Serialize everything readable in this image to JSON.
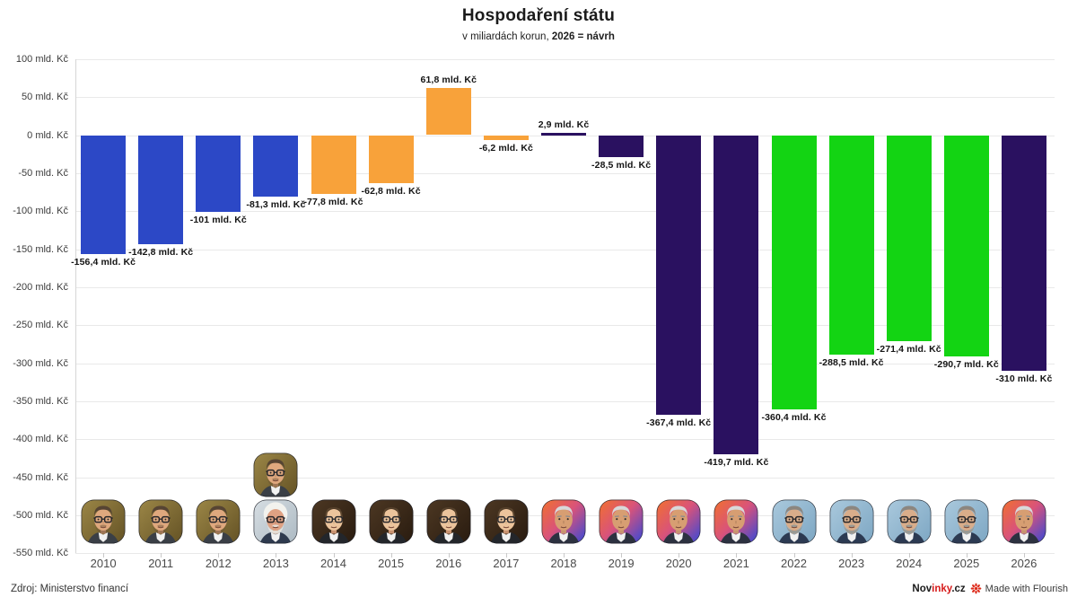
{
  "header": {
    "title": "Hospodaření státu",
    "subtitle_prefix": "v miliardách korun, ",
    "subtitle_bold": "2026 = návrh"
  },
  "chart_data": {
    "type": "bar",
    "title": "Hospodaření státu",
    "subtitle": "v miliardách korun, 2026 = návrh",
    "unit": "mld. Kč",
    "ylim": [
      -550,
      100
    ],
    "y_tick_step": 50,
    "grid": true,
    "legend": "none",
    "y_ticks": [
      {
        "v": 100,
        "label": "100 mld. Kč"
      },
      {
        "v": 50,
        "label": "50 mld. Kč"
      },
      {
        "v": 0,
        "label": "0 mld. Kč"
      },
      {
        "v": -50,
        "label": "-50 mld. Kč"
      },
      {
        "v": -100,
        "label": "-100 mld. Kč"
      },
      {
        "v": -150,
        "label": "-150 mld. Kč"
      },
      {
        "v": -200,
        "label": "-200 mld. Kč"
      },
      {
        "v": -250,
        "label": "-250 mld. Kč"
      },
      {
        "v": -300,
        "label": "-300 mld. Kč"
      },
      {
        "v": -350,
        "label": "-350 mld. Kč"
      },
      {
        "v": -400,
        "label": "-400 mld. Kč"
      },
      {
        "v": -450,
        "label": "-450 mld. Kč"
      },
      {
        "v": -500,
        "label": "-500 mld. Kč"
      },
      {
        "v": -550,
        "label": "-550 mld. Kč"
      }
    ],
    "palette": {
      "blue": "#2c48c6",
      "orange": "#f8a23a",
      "purple": "#2a1160",
      "green": "#13d413"
    },
    "points": [
      {
        "year": "2010",
        "value": -156.4,
        "label": "-156,4 mld. Kč",
        "color": "blue",
        "avatars": [
          "necas"
        ]
      },
      {
        "year": "2011",
        "value": -142.8,
        "label": "-142,8 mld. Kč",
        "color": "blue",
        "avatars": [
          "necas"
        ]
      },
      {
        "year": "2012",
        "value": -101,
        "label": "-101 mld. Kč",
        "color": "blue",
        "avatars": [
          "necas"
        ]
      },
      {
        "year": "2013",
        "value": -81.3,
        "label": "-81,3 mld. Kč",
        "color": "blue",
        "avatars": [
          "rusnok",
          "necas"
        ]
      },
      {
        "year": "2014",
        "value": -77.8,
        "label": "-77,8 mld. Kč",
        "color": "orange",
        "avatars": [
          "sobotka"
        ]
      },
      {
        "year": "2015",
        "value": -62.8,
        "label": "-62,8 mld. Kč",
        "color": "orange",
        "avatars": [
          "sobotka"
        ]
      },
      {
        "year": "2016",
        "value": 61.8,
        "label": "61,8 mld. Kč",
        "color": "orange",
        "avatars": [
          "sobotka"
        ]
      },
      {
        "year": "2017",
        "value": -6.2,
        "label": "-6,2 mld. Kč",
        "color": "orange",
        "avatars": [
          "sobotka"
        ]
      },
      {
        "year": "2018",
        "value": 2.9,
        "label": "2,9 mld. Kč",
        "color": "purple",
        "avatars": [
          "babis"
        ]
      },
      {
        "year": "2019",
        "value": -28.5,
        "label": "-28,5 mld. Kč",
        "color": "purple",
        "avatars": [
          "babis"
        ]
      },
      {
        "year": "2020",
        "value": -367.4,
        "label": "-367,4 mld. Kč",
        "color": "purple",
        "avatars": [
          "babis"
        ]
      },
      {
        "year": "2021",
        "value": -419.7,
        "label": "-419,7 mld. Kč",
        "color": "purple",
        "avatars": [
          "babis"
        ]
      },
      {
        "year": "2022",
        "value": -360.4,
        "label": "-360,4 mld. Kč",
        "color": "green",
        "avatars": [
          "fiala"
        ]
      },
      {
        "year": "2023",
        "value": -288.5,
        "label": "-288,5 mld. Kč",
        "color": "green",
        "avatars": [
          "fiala"
        ]
      },
      {
        "year": "2024",
        "value": -271.4,
        "label": "-271,4 mld. Kč",
        "color": "green",
        "avatars": [
          "fiala"
        ]
      },
      {
        "year": "2025",
        "value": -290.7,
        "label": "-290,7 mld. Kč",
        "color": "green",
        "avatars": [
          "fiala"
        ]
      },
      {
        "year": "2026",
        "value": -310,
        "label": "-310 mld. Kč",
        "color": "purple",
        "avatars": [
          "babis"
        ]
      }
    ]
  },
  "avatars": {
    "necas": {
      "bg": [
        "#9c8747",
        "#665426"
      ],
      "skin": "#dfa87e",
      "hair": "#564433",
      "glasses": true,
      "beard": "#6b5138",
      "beard_opacity": 0.45,
      "suit": "#3a3f46"
    },
    "rusnok": {
      "bg": [
        "#d7dee3",
        "#aebbc4"
      ],
      "skin": "#dfa183",
      "hair": "#f2f2ee",
      "glasses": true,
      "beard": "#e8e6df",
      "beard_opacity": 0.9,
      "suit": "#2e3a4e",
      "fluffy": true
    },
    "sobotka": {
      "bg": [
        "#4d3823",
        "#2a1c10"
      ],
      "skin": "#ecc49c",
      "hair": "#5d4730",
      "glasses": true,
      "beard": null,
      "suit": "#23262b",
      "bald": true
    },
    "babis": {
      "bg": [
        "#f2712c",
        "#d9537a",
        "#3f49d2"
      ],
      "skin": "#d79e72",
      "hair": "#d8d8da",
      "glasses": false,
      "beard": null,
      "suit": "#2c3140"
    },
    "fiala": {
      "bg": [
        "#aac9dd",
        "#7fa8c4"
      ],
      "skin": "#d9ad8a",
      "hair": "#8b8680",
      "glasses": true,
      "beard": "#9a9a94",
      "beard_opacity": 1,
      "suit": "#2c3a52"
    }
  },
  "footer": {
    "source": "Zdroj: Ministerstvo financí",
    "brand_nov": "Nov",
    "brand_inky": "inky",
    "brand_cz": ".cz",
    "flourish_credit": "Made with Flourish"
  }
}
